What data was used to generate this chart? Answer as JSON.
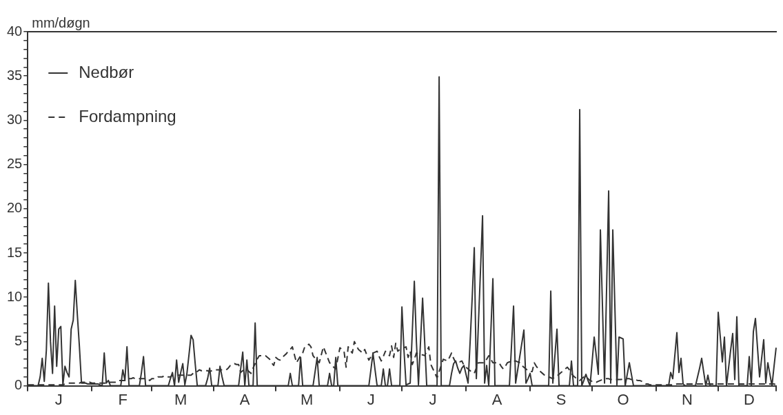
{
  "chart_data": {
    "type": "line",
    "ylabel": "mm/døgn",
    "categories": [
      null,
      null,
      null,
      null,
      null,
      null,
      null,
      null,
      null,
      null,
      null,
      null,
      null,
      null,
      null,
      "J",
      null,
      null,
      null,
      null,
      null,
      null,
      null,
      null,
      null,
      null,
      null,
      null,
      null,
      null,
      null,
      null,
      null,
      null,
      null,
      null,
      null,
      null,
      null,
      null,
      null,
      null,
      null,
      null,
      null,
      null,
      "F",
      null,
      null,
      null,
      null,
      null,
      null,
      null,
      null,
      null,
      null,
      null,
      null,
      null,
      null,
      null,
      null,
      null,
      null,
      null,
      null,
      null,
      null,
      null,
      null,
      null,
      null,
      null,
      "M",
      null,
      null,
      null,
      null,
      null,
      null,
      null,
      null,
      null,
      null,
      null,
      null,
      null,
      null,
      null,
      null,
      null,
      null,
      null,
      null,
      null,
      null,
      null,
      null,
      null,
      null,
      null,
      null,
      null,
      null,
      "A",
      null,
      null,
      null,
      null,
      null,
      null,
      null,
      null,
      null,
      null,
      null,
      null,
      null,
      null,
      null,
      null,
      null,
      null,
      null,
      null,
      null,
      null,
      null,
      null,
      null,
      null,
      null,
      null,
      null,
      "M",
      null,
      null,
      null,
      null,
      null,
      null,
      null,
      null,
      null,
      null,
      null,
      null,
      null,
      null,
      null,
      null,
      null,
      null,
      null,
      null,
      null,
      null,
      null,
      null,
      null,
      null,
      null,
      null,
      null,
      null,
      "J",
      null,
      null,
      null,
      null,
      null,
      null,
      null,
      null,
      null,
      null,
      null,
      null,
      null,
      null,
      null,
      null,
      null,
      null,
      null,
      null,
      null,
      null,
      null,
      null,
      null,
      null,
      null,
      null,
      null,
      "J",
      null,
      null,
      null,
      null,
      null,
      null,
      null,
      null,
      null,
      null,
      null,
      null,
      null,
      null,
      null,
      null,
      null,
      null,
      null,
      null,
      null,
      null,
      null,
      null,
      null,
      null,
      null,
      null,
      null,
      null,
      "A",
      null,
      null,
      null,
      null,
      null,
      null,
      null,
      null,
      null,
      null,
      null,
      null,
      null,
      null,
      null,
      null,
      null,
      null,
      null,
      null,
      null,
      null,
      null,
      null,
      null,
      null,
      null,
      null,
      null,
      null,
      "S",
      null,
      null,
      null,
      null,
      null,
      null,
      null,
      null,
      null,
      null,
      null,
      null,
      null,
      null,
      null,
      null,
      null,
      null,
      null,
      null,
      null,
      null,
      null,
      null,
      null,
      null,
      null,
      null,
      null,
      "O",
      null,
      null,
      null,
      null,
      null,
      null,
      null,
      null,
      null,
      null,
      null,
      null,
      null,
      null,
      null,
      null,
      null,
      null,
      null,
      null,
      null,
      null,
      null,
      null,
      null,
      null,
      null,
      null,
      null,
      null,
      "N",
      null,
      null,
      null,
      null,
      null,
      null,
      null,
      null,
      null,
      null,
      null,
      null,
      null,
      null,
      null,
      null,
      null,
      null,
      null,
      null,
      null,
      null,
      null,
      null,
      null,
      null,
      null,
      null,
      null,
      "D",
      null,
      null,
      null,
      null,
      null,
      null,
      null,
      null,
      null,
      null,
      null,
      null,
      null
    ],
    "ylim": [
      0,
      40
    ],
    "yticks": [
      0,
      {
        "value": 1,
        "label": null
      },
      {
        "value": 2,
        "label": null
      },
      {
        "value": 3,
        "label": null
      },
      {
        "value": 4,
        "label": null
      },
      5,
      {
        "value": 6,
        "label": null
      },
      {
        "value": 7,
        "label": null
      },
      {
        "value": 8,
        "label": null
      },
      {
        "value": 9,
        "label": null
      },
      10,
      {
        "value": 11,
        "label": null
      },
      {
        "value": 12,
        "label": null
      },
      {
        "value": 13,
        "label": null
      },
      {
        "value": 14,
        "label": null
      },
      15,
      {
        "value": 16,
        "label": null
      },
      {
        "value": 17,
        "label": null
      },
      {
        "value": 18,
        "label": null
      },
      {
        "value": 19,
        "label": null
      },
      20,
      {
        "value": 21,
        "label": null
      },
      {
        "value": 22,
        "label": null
      },
      {
        "value": 23,
        "label": null
      },
      {
        "value": 24,
        "label": null
      },
      25,
      {
        "value": 26,
        "label": null
      },
      {
        "value": 27,
        "label": null
      },
      {
        "value": 28,
        "label": null
      },
      {
        "value": 29,
        "label": null
      },
      30,
      {
        "value": 31,
        "label": null
      },
      {
        "value": 32,
        "label": null
      },
      {
        "value": 33,
        "label": null
      },
      {
        "value": 34,
        "label": null
      },
      35,
      {
        "value": 36,
        "label": null
      },
      {
        "value": 37,
        "label": null
      },
      {
        "value": 38,
        "label": null
      },
      {
        "value": 39,
        "label": null
      },
      40
    ],
    "grid": false,
    "legend": "top left",
    "marker": "none",
    "series": [
      {
        "name": "Nedbør",
        "color": "#333333",
        "line_style": "solid",
        "values": [
          0,
          0,
          0,
          0,
          0,
          0,
          1,
          3.1,
          0.5,
          4,
          11.6,
          5,
          1.4,
          9,
          2.2,
          6.4,
          6.7,
          0.1,
          2.2,
          1.5,
          1,
          6.4,
          7.4,
          11.9,
          8,
          4.4,
          0.3,
          0.3,
          0.3,
          0.2,
          0.2,
          0.2,
          0.2,
          0.2,
          0.2,
          0.1,
          0,
          3.7,
          0.3,
          0.6,
          0,
          0,
          0,
          0,
          0,
          0,
          1.8,
          0.6,
          4.4,
          0,
          0,
          0,
          0,
          0,
          0,
          1.5,
          3.3,
          0,
          0,
          0,
          0,
          0,
          0,
          0,
          0,
          0,
          0,
          0,
          0,
          0.8,
          1.5,
          0,
          2.9,
          0.4,
          1.5,
          2.5,
          0.1,
          1.4,
          3.5,
          5.7,
          5.2,
          2.5,
          0,
          0,
          0,
          0,
          0,
          0.8,
          2,
          0,
          0,
          0,
          0,
          2.2,
          1,
          0,
          0,
          0,
          0,
          0,
          0,
          0,
          0,
          1.9,
          3.8,
          0,
          2.9,
          0,
          0,
          0,
          7.1,
          0,
          0,
          0,
          0,
          0,
          0,
          0,
          0,
          0,
          0,
          0,
          0,
          0,
          0,
          0,
          0,
          1.4,
          0,
          0,
          0,
          0,
          3.2,
          0,
          0,
          0,
          0,
          0,
          0,
          1.6,
          3.2,
          0,
          0,
          0,
          0,
          0,
          1.4,
          0,
          0,
          3.2,
          0,
          0,
          0,
          0,
          0,
          0,
          0,
          0,
          0,
          0,
          0,
          0,
          0,
          0,
          0,
          0,
          1.8,
          3.7,
          1.8,
          0,
          0,
          0,
          1.9,
          0,
          0,
          1.9,
          0,
          0,
          0,
          0,
          0,
          8.9,
          4,
          0.1,
          0.2,
          0.3,
          6,
          11.8,
          5,
          0.1,
          5,
          9.9,
          5,
          0,
          0,
          0,
          0,
          0,
          0,
          34.9,
          0,
          0,
          0,
          0,
          0,
          1.4,
          2.5,
          2.8,
          2,
          1.4,
          2,
          2.3,
          1.3,
          0.3,
          5,
          10,
          15.6,
          0.8,
          7,
          13,
          19.2,
          0.3,
          2.3,
          0,
          6,
          12.1,
          0,
          0,
          0,
          0,
          0,
          0,
          0,
          0,
          4.5,
          9,
          0.3,
          1.8,
          3.3,
          4.8,
          6.3,
          0.3,
          0.8,
          1.4,
          0,
          0,
          0,
          0,
          0,
          0,
          0,
          0,
          0,
          10.7,
          0.3,
          3.4,
          6.4,
          0,
          0,
          0,
          0,
          0,
          0,
          2.8,
          0,
          0,
          0,
          31.2,
          0,
          0.6,
          1.3,
          0.6,
          0,
          2.7,
          5.5,
          3.4,
          1.3,
          17.6,
          9,
          0.3,
          11,
          22,
          0.3,
          17.6,
          9,
          0.1,
          5.5,
          5.4,
          5.3,
          0,
          1.3,
          2.6,
          1.3,
          0,
          0,
          0,
          0,
          0,
          0,
          0,
          0,
          0,
          0,
          0,
          0,
          0,
          0,
          0,
          0,
          0,
          0,
          1.5,
          0.8,
          3.4,
          6,
          1.5,
          3.1,
          0.2,
          0,
          0,
          0,
          0,
          0,
          0,
          1,
          2,
          3.1,
          1.5,
          0,
          1.2,
          0,
          0,
          0,
          0,
          8.3,
          5.5,
          2.7,
          5.5,
          0,
          2,
          4,
          5.9,
          0.7,
          7.8,
          0,
          0,
          0,
          0,
          0,
          3.3,
          0,
          6.1,
          7.6,
          4.3,
          1,
          3.1,
          5.2,
          0.3,
          2.6,
          1.3,
          0,
          2.2,
          4.3
        ]
      },
      {
        "name": "Fordampning",
        "color": "#333333",
        "line_style": "dashed",
        "values": [
          0.1,
          0.1,
          0.1,
          0.1,
          0.1,
          0.1,
          0.1,
          0.1,
          0.1,
          0.1,
          0.1,
          0.1,
          0.1,
          0.1,
          0.1,
          0.1,
          0.1,
          0.1,
          0.2,
          0.3,
          0.3,
          0.3,
          0.3,
          0.3,
          0.3,
          0.3,
          0.4,
          0.4,
          0.4,
          0.4,
          0.4,
          0.3,
          0.3,
          0.3,
          0.3,
          0.3,
          0.3,
          0.3,
          0.3,
          0.4,
          0.4,
          0.4,
          0.4,
          0.4,
          0.6,
          0.6,
          0.6,
          0.6,
          0.8,
          0.8,
          0.8,
          0.9,
          0.8,
          0.8,
          0.8,
          0.8,
          0.8,
          0.8,
          0.8,
          0.6,
          0.8,
          0.8,
          0.8,
          1,
          1,
          1,
          1.1,
          1,
          1,
          1,
          1.2,
          1.2,
          1.2,
          1.2,
          1.2,
          1.2,
          1.2,
          1.2,
          1.2,
          1.2,
          1.4,
          1.6,
          1.6,
          1.8,
          1.7,
          1.7,
          1.7,
          1.7,
          1.6,
          1.7,
          1.8,
          1.8,
          1.8,
          1.8,
          1.8,
          1.8,
          1.8,
          2,
          2.3,
          2.4,
          2.5,
          2.4,
          2.4,
          1.5,
          1.7,
          1.8,
          1.9,
          1.6,
          1.4,
          2,
          2.5,
          3,
          3.4,
          3.4,
          3.4,
          3.4,
          3.2,
          3,
          2.6,
          2.3,
          3.2,
          3,
          2.9,
          3.1,
          3.4,
          3.6,
          3.9,
          4.1,
          4.4,
          3.5,
          2.6,
          3,
          3.4,
          3.7,
          4.4,
          4.5,
          4.7,
          4.4,
          3.4,
          3.1,
          2.9,
          2.6,
          3.5,
          4.4,
          3.8,
          3.2,
          2.6,
          2.4,
          2.1,
          1.9,
          3.1,
          4.3,
          4.1,
          3.9,
          2.1,
          4.4,
          4,
          3.7,
          5,
          4.5,
          4.1,
          3.9,
          3.7,
          4.1,
          3.5,
          2.9,
          3.3,
          3.7,
          3.8,
          3.9,
          3.3,
          2.8,
          3.3,
          3.9,
          3.6,
          3.4,
          4.5,
          3.2,
          4.8,
          3.9,
          4.1,
          4.2,
          4.3,
          4.4,
          3.2,
          3.9,
          2.4,
          3,
          3.7,
          3.6,
          3.5,
          3.5,
          3.4,
          3.9,
          4.4,
          2.4,
          1.9,
          1.4,
          0.9,
          1.6,
          2.3,
          3,
          2.9,
          2.8,
          3.2,
          3.7,
          3.1,
          2.6,
          2.7,
          2.7,
          2.8,
          2.3,
          2.1,
          1.9,
          1.7,
          1.5,
          1.4,
          2,
          2.6,
          2.6,
          2.6,
          2.6,
          3,
          3.4,
          3,
          2.6,
          2.6,
          2.6,
          2.6,
          2.2,
          1.9,
          2.2,
          2.6,
          2.7,
          2.7,
          2.8,
          2.8,
          2.7,
          2.6,
          2.3,
          2.1,
          1.9,
          1.7,
          1.6,
          1.6,
          2.6,
          2.2,
          1.9,
          1.6,
          1.4,
          1.2,
          1.1,
          1,
          0.9,
          0.8,
          1,
          1.1,
          1.3,
          1.5,
          1.7,
          1.9,
          2.1,
          1.8,
          1.4,
          1.1,
          0.9,
          0.8,
          0.6,
          0.8,
          1,
          1.1,
          0.8,
          0.6,
          0.5,
          0.5,
          0.4,
          0.5,
          0.6,
          0.7,
          0.8,
          0.8,
          0.8,
          0.7,
          0.7,
          0.7,
          0.7,
          0.7,
          0.7,
          0.8,
          0.8,
          0.8,
          0.8,
          0.7,
          0.7,
          0.7,
          0.6,
          0.6,
          0.5,
          0.3,
          0.2,
          0.2,
          0.1,
          0.1,
          0.1,
          0.1,
          0.1,
          0.1,
          0.1,
          0.1,
          0.1,
          0.1,
          0.1,
          0.1,
          0.1,
          0.2,
          0.2,
          0.2,
          0.2,
          0.2,
          0.2,
          0.2,
          0.2,
          0.2,
          0.2,
          0.2,
          0.2,
          0.2,
          0.2,
          0.2,
          0.2,
          0.2,
          0.2,
          0.2,
          0.2,
          0.2,
          0.2,
          0.2,
          0.2,
          0.2,
          0.2,
          0.2,
          0.2,
          0.2,
          0.2,
          0.2,
          0.2,
          0.2,
          0.2,
          0.2,
          0.2,
          0.2,
          0.2,
          0.2,
          0.2,
          0.2,
          0.2,
          0.2,
          0.2,
          0.2,
          0.2,
          0.2,
          0.2,
          0.1
        ]
      }
    ]
  }
}
